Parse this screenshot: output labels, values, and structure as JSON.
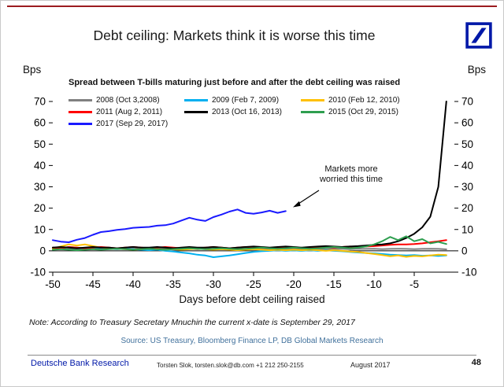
{
  "slide": {
    "title": "Debt ceiling: Markets think it is worse this time",
    "note": "Note: According to Treasury Secretary Mnuchin the current x-date is September 29, 2017",
    "source": "Source: US Treasury, Bloomberg Finance LP, DB Global Markets Research",
    "footer": {
      "brand": "Deutsche Bank Research",
      "contact": "Torsten Slok, torsten.slok@db.com +1 212 250-2155",
      "date": "August 2017",
      "page": "48"
    },
    "colors": {
      "brand_blue": "#0018A8",
      "top_rule_red": "#9B1B1F",
      "source_text_blue": "#41719C"
    }
  },
  "chart_data": {
    "type": "line",
    "subtitle": "Spread between T-bills maturing just before and after the debt ceiling was raised",
    "unit_left": "Bps",
    "unit_right": "Bps",
    "xlabel": "Days before debt ceiling raised",
    "annotation": "Markets more worried this time",
    "ylim": [
      -10,
      70
    ],
    "y_ticks": [
      -10,
      0,
      10,
      20,
      30,
      40,
      50,
      60,
      70
    ],
    "x_ticks": [
      -50,
      -45,
      -40,
      -35,
      -30,
      -25,
      -20,
      -15,
      -10,
      -5
    ],
    "legend_position": "top-left",
    "grid": false,
    "series": [
      {
        "name": "2008",
        "label": "2008 (Oct 3,2008)",
        "color": "#808080",
        "x_start": -50,
        "y": [
          0.9,
          1,
          0.8,
          1,
          0.9,
          1,
          0.8,
          0.9,
          1.1,
          0.9,
          1,
          0.8,
          1,
          0.9,
          1,
          0.8,
          0.9,
          1,
          0.8,
          1,
          0.9,
          1,
          0.8,
          0.9,
          1,
          0.9,
          0.8,
          1,
          0.9,
          1,
          0.8,
          0.9,
          1,
          0.9,
          0.8,
          1,
          0.9,
          0.8,
          1,
          0.9,
          1,
          0.8,
          0.9,
          1,
          0.9,
          0.8,
          0.9,
          1,
          0.9,
          0.7
        ]
      },
      {
        "name": "2009",
        "label": "2009 (Feb 7, 2009)",
        "color": "#00B0F0",
        "x_start": -50,
        "y": [
          1.5,
          1.2,
          1.8,
          1.5,
          1.2,
          1.5,
          1.3,
          1,
          0.8,
          1,
          0.8,
          0.5,
          0.3,
          0.5,
          0,
          -0.3,
          -0.8,
          -1.2,
          -1.8,
          -2.2,
          -3,
          -2.6,
          -2.2,
          -1.6,
          -1,
          -0.5,
          -0.2,
          0,
          0.3,
          0,
          0.2,
          0,
          0.3,
          0,
          0.2,
          0,
          -0.2,
          -0.5,
          -0.8,
          -1,
          -1.2,
          -1.5,
          -1.8,
          -2,
          -2.2,
          -2,
          -2.3,
          -2.2,
          -2.4,
          -2.2
        ]
      },
      {
        "name": "2010",
        "label": "2010 (Feb 12, 2010)",
        "color": "#FFC000",
        "x_start": -50,
        "y": [
          1,
          2,
          3,
          2.5,
          3,
          2.2,
          1.5,
          1.2,
          1,
          0.8,
          0.5,
          0.8,
          1,
          0.8,
          0.5,
          0.8,
          0.5,
          0.8,
          1,
          0.8,
          0.5,
          0.8,
          0.5,
          0.3,
          0.5,
          0.8,
          0.5,
          0.3,
          0.5,
          0.3,
          0.5,
          0.3,
          0.5,
          0.3,
          0,
          0.3,
          0,
          -0.3,
          -0.5,
          -1,
          -1.5,
          -2,
          -2.5,
          -2.2,
          -2.8,
          -2.4,
          -2.6,
          -2.2,
          -1.8,
          -2
        ]
      },
      {
        "name": "2011",
        "label": "2011 (Aug 2, 2011)",
        "color": "#FF0000",
        "x_start": -50,
        "y": [
          1.5,
          1.2,
          1.8,
          1.5,
          1.2,
          1.5,
          1.8,
          1.5,
          1.2,
          1.5,
          1.8,
          1.5,
          1.2,
          1.5,
          1.8,
          1.5,
          1.2,
          1.5,
          1.2,
          1.5,
          1.8,
          1.5,
          1.2,
          1.5,
          1.8,
          1.5,
          1.5,
          1.2,
          1.5,
          1.8,
          1.5,
          1.2,
          1.5,
          1.5,
          1.8,
          1.5,
          1.8,
          2,
          1.8,
          2,
          2.2,
          2.5,
          2.8,
          3,
          3,
          3.2,
          3.5,
          4,
          4.5,
          5
        ]
      },
      {
        "name": "2013",
        "label": "2013 (Oct 16, 2013)",
        "color": "#000000",
        "x_start": -50,
        "y": [
          1.5,
          1.8,
          1.5,
          1.2,
          1.5,
          1.8,
          1.5,
          1.5,
          1.2,
          1.5,
          1.8,
          1.5,
          1.5,
          1.8,
          1.5,
          1.2,
          1.5,
          1.8,
          1.5,
          1.5,
          1.8,
          1.5,
          1.2,
          1.5,
          1.8,
          2,
          1.8,
          1.5,
          1.8,
          2,
          1.8,
          1.5,
          1.8,
          2,
          2.2,
          2,
          1.8,
          2,
          2.2,
          2.5,
          2.8,
          3,
          3.5,
          4.5,
          6,
          8,
          11,
          16,
          30,
          70
        ]
      },
      {
        "name": "2015",
        "label": "2015 (Oct 29, 2015)",
        "color": "#2E9E4F",
        "x_start": -50,
        "y": [
          0.5,
          0.8,
          0.5,
          0.3,
          0.5,
          0.8,
          0.5,
          0.8,
          1,
          0.8,
          0.5,
          0.8,
          1,
          0.8,
          0.5,
          0.8,
          1,
          1.2,
          1,
          0.8,
          1,
          1.2,
          1,
          0.8,
          1,
          1.2,
          1.5,
          1.2,
          1,
          1.2,
          1.5,
          1.2,
          1,
          1.2,
          1.5,
          1.8,
          1.5,
          1.2,
          1.5,
          2,
          3,
          4.5,
          6.5,
          5,
          6.8,
          4.5,
          5.5,
          3.5,
          4.2,
          3.2
        ]
      },
      {
        "name": "2017",
        "label": "2017 (Sep 29, 2017)",
        "color": "#1A1AFF",
        "x_start": -50,
        "y": [
          5,
          4.3,
          4,
          5.2,
          6,
          7.5,
          8.8,
          9.2,
          9.8,
          10.2,
          10.8,
          11,
          11.2,
          11.8,
          12,
          12.8,
          14.2,
          15.5,
          14.6,
          14,
          15.8,
          17,
          18.4,
          19.4,
          17.8,
          17.4,
          18,
          18.8,
          17.8,
          18.6
        ]
      }
    ]
  }
}
